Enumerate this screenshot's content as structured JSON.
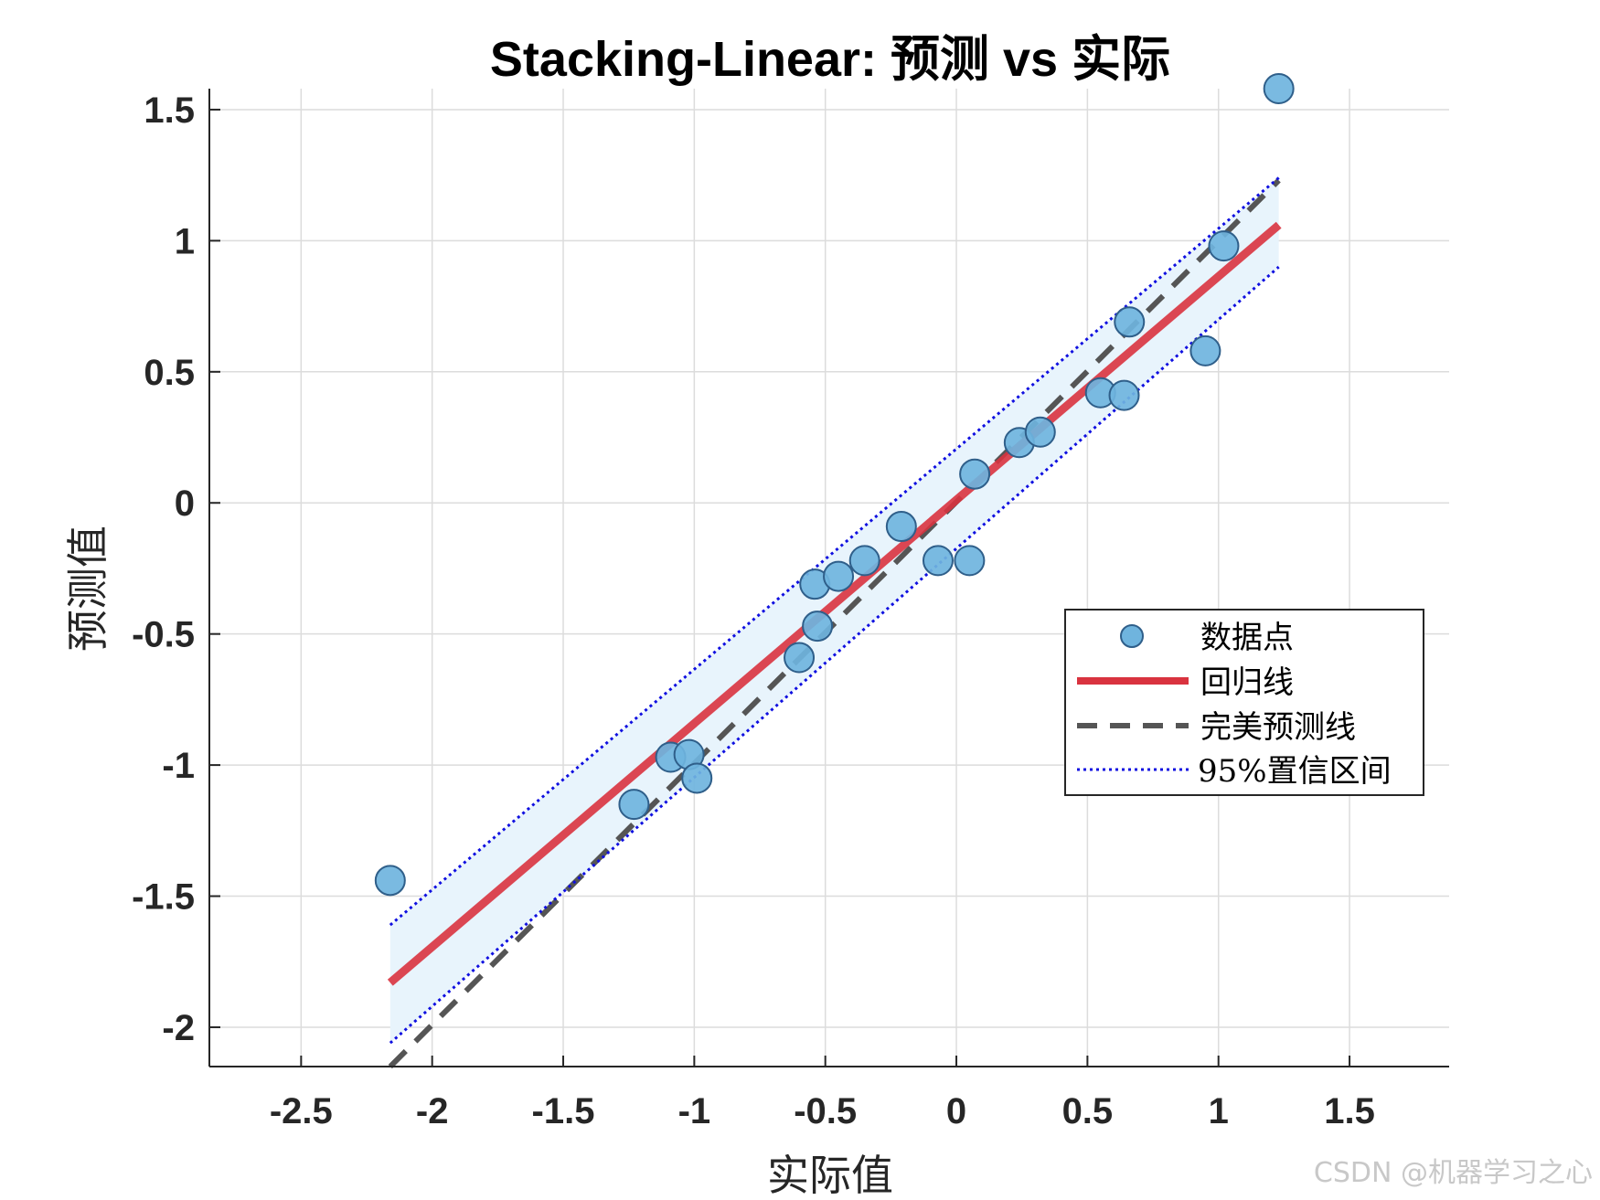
{
  "chart_data": {
    "type": "scatter",
    "title": "Stacking-Linear: 预测 vs 实际",
    "xlabel": "实际值",
    "ylabel": "预测值",
    "xlim": [
      -2.85,
      1.88
    ],
    "ylim": [
      -2.15,
      1.58
    ],
    "xticks": [
      -2.5,
      -2,
      -1.5,
      -1,
      -0.5,
      0,
      0.5,
      1,
      1.5
    ],
    "yticks": [
      -2,
      -1.5,
      -1,
      -0.5,
      0,
      0.5,
      1,
      1.5
    ],
    "xtick_labels": [
      "-2.5",
      "-2",
      "-1.5",
      "-1",
      "-0.5",
      "0",
      "0.5",
      "1",
      "1.5"
    ],
    "ytick_labels": [
      "-2",
      "-1.5",
      "-1",
      "-0.5",
      "0",
      "0.5",
      "1",
      "1.5"
    ],
    "grid": true,
    "legend_position": "right",
    "series": [
      {
        "name": "数据点",
        "kind": "scatter",
        "color": "#6fb4de",
        "edge_color": "#2f5f8a",
        "points": [
          [
            -2.16,
            -1.44
          ],
          [
            -1.23,
            -1.15
          ],
          [
            -1.09,
            -0.97
          ],
          [
            -1.02,
            -0.96
          ],
          [
            -0.99,
            -1.05
          ],
          [
            -0.6,
            -0.59
          ],
          [
            -0.53,
            -0.47
          ],
          [
            -0.54,
            -0.31
          ],
          [
            -0.45,
            -0.28
          ],
          [
            -0.35,
            -0.22
          ],
          [
            -0.21,
            -0.09
          ],
          [
            -0.07,
            -0.22
          ],
          [
            0.05,
            -0.22
          ],
          [
            0.07,
            0.11
          ],
          [
            0.24,
            0.23
          ],
          [
            0.32,
            0.27
          ],
          [
            0.55,
            0.42
          ],
          [
            0.64,
            0.41
          ],
          [
            0.66,
            0.69
          ],
          [
            0.95,
            0.58
          ],
          [
            1.02,
            0.98
          ],
          [
            1.23,
            1.58
          ]
        ]
      },
      {
        "name": "回归线",
        "kind": "line",
        "color": "#d9333f",
        "points": [
          [
            -2.16,
            -1.83
          ],
          [
            1.23,
            1.06
          ]
        ]
      },
      {
        "name": "完美预测线",
        "kind": "dashed-line",
        "color": "#555555",
        "points": [
          [
            -2.16,
            -2.16
          ],
          [
            1.23,
            1.23
          ]
        ]
      },
      {
        "name": "95%置信区间",
        "kind": "dotted-band",
        "color": "#1010e0",
        "fill": "#e8f4fc",
        "upper": [
          [
            -2.16,
            -1.61
          ],
          [
            1.23,
            1.24
          ]
        ],
        "lower": [
          [
            -2.16,
            -2.06
          ],
          [
            1.23,
            0.9
          ]
        ]
      }
    ],
    "legend": [
      {
        "label": "数据点",
        "kind": "scatter"
      },
      {
        "label": "回归线",
        "kind": "line"
      },
      {
        "label": "完美预测线",
        "kind": "dashed-line"
      },
      {
        "label": "95%置信区间",
        "kind": "dotted-band"
      }
    ]
  },
  "watermark": "CSDN @机器学习之心"
}
